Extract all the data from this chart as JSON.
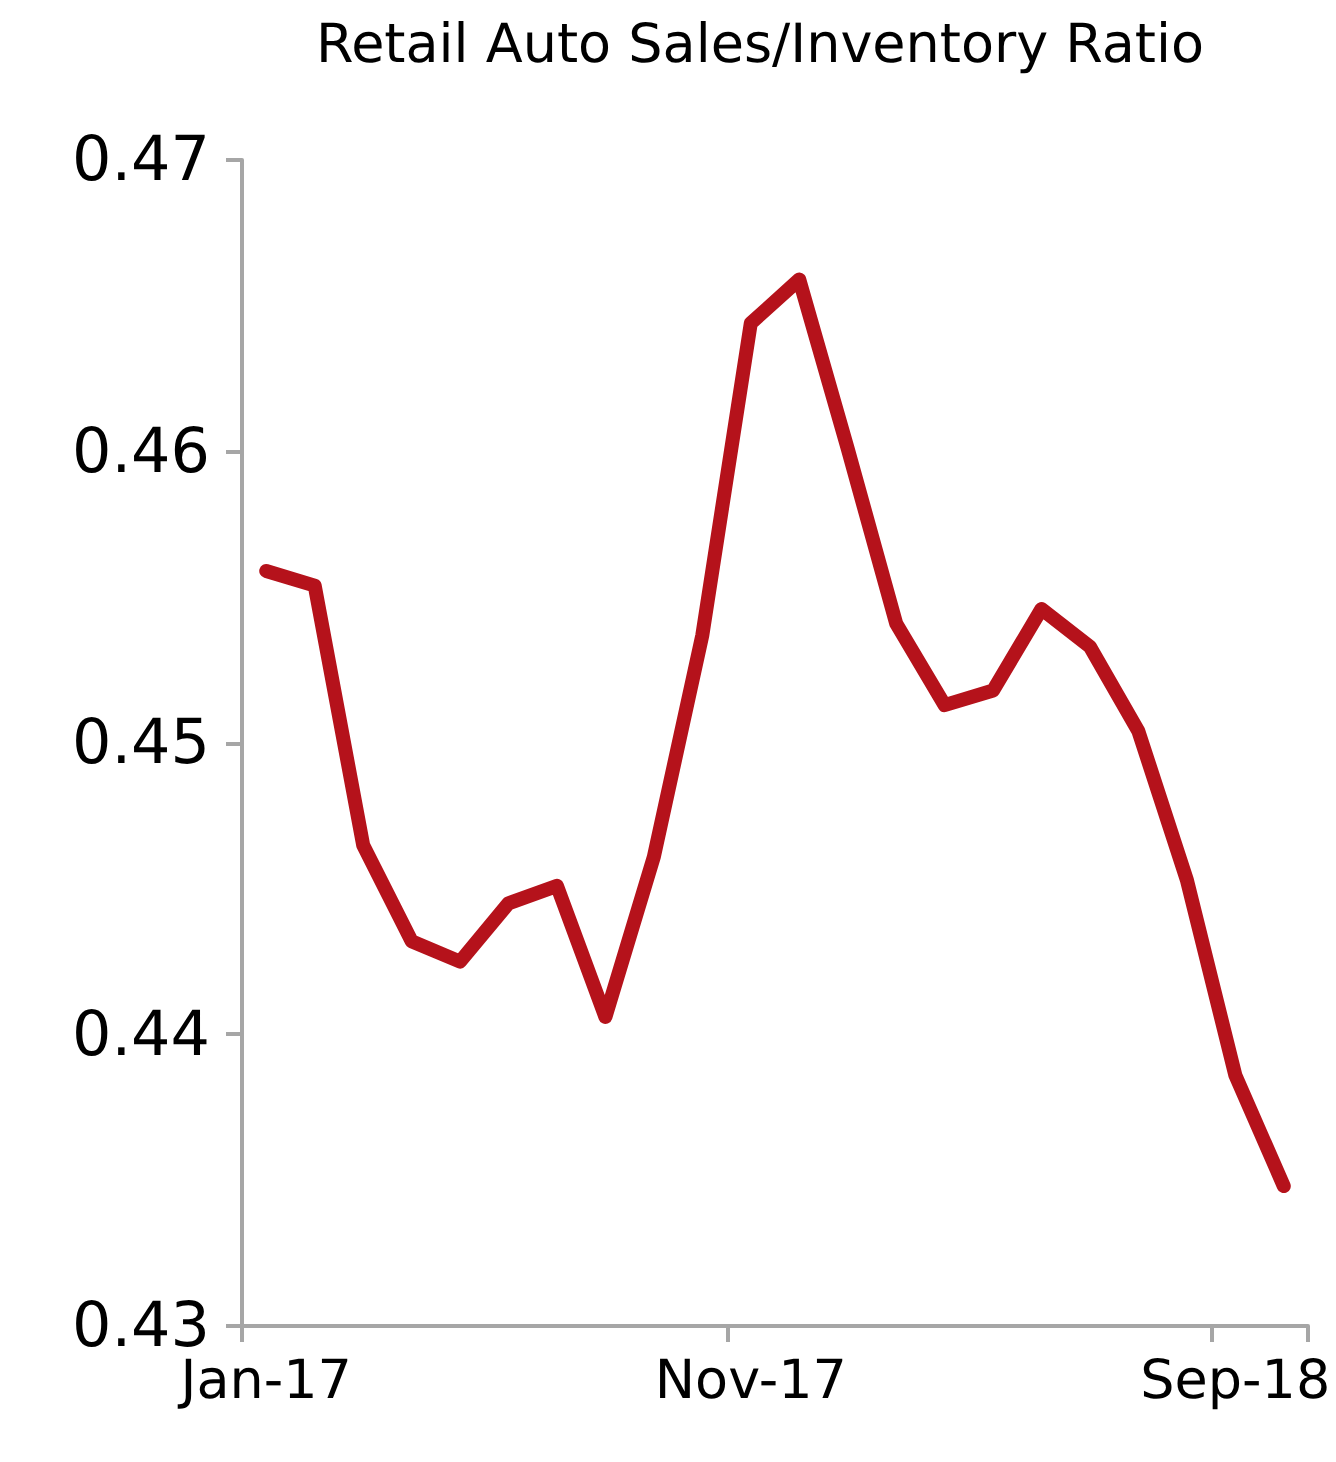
{
  "chart_data": {
    "type": "line",
    "title": "Retail Auto Sales/Inventory Ratio",
    "categories": [
      "Jan-17",
      null,
      null,
      null,
      null,
      null,
      null,
      null,
      null,
      null,
      "Nov-17",
      null,
      null,
      null,
      null,
      null,
      null,
      null,
      null,
      null,
      "Sep-18",
      null
    ],
    "series": [
      {
        "color": "#b5121b",
        "values": [
          0.4559,
          0.4554,
          0.4465,
          0.4432,
          0.4425,
          0.4445,
          0.4451,
          0.4406,
          0.4461,
          0.4537,
          0.4644,
          0.4659,
          0.4601,
          0.4541,
          0.4513,
          0.4518,
          0.4546,
          0.4533,
          0.4504,
          0.4453,
          0.4386,
          0.4348
        ]
      }
    ],
    "ylim": [
      0.43,
      0.47
    ],
    "yticks": [
      0.43,
      0.44,
      0.45,
      0.46,
      0.47
    ],
    "grid": false,
    "marker": "none",
    "line_style": "solid"
  }
}
